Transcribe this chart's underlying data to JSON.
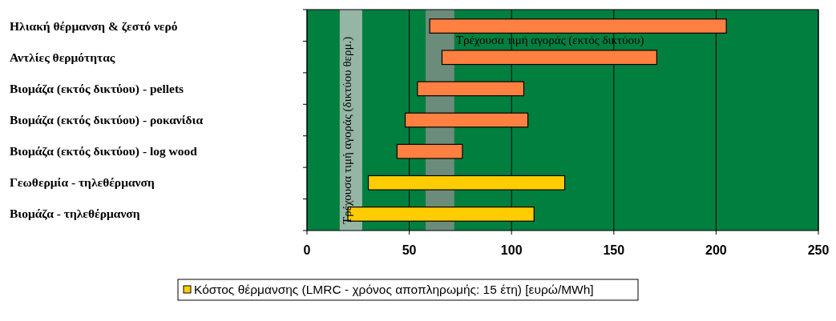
{
  "chart_data": {
    "type": "bar",
    "orientation": "horizontal",
    "categories": [
      "Ηλιακή θέρμανση & ζεστό νερό",
      "Αντλίες θερμότητας",
      "Βιομάζα (εκτός δικτύου) - pellets",
      "Βιομάζα (εκτός δικτύου) - ροκανίδια",
      "Βιομάζα (εκτός δικτύου) - log wood",
      "Γεωθερμία - τηλεθέρμανση",
      "Βιομάζα - τηλεθέρμανση"
    ],
    "series": [
      {
        "base": [
          60,
          66,
          54,
          48,
          44,
          30,
          20
        ],
        "name": "Κόστος θέρμανσης (LMRC - χρόνος αποπληρωμής: 15 έτη) [ευρώ/MWh]",
        "color": "#ffcc00",
        "colors": [
          "#ff8040",
          "#ff8040",
          "#ff8040",
          "#ff8040",
          "#ff8040",
          "#ffcc00",
          "#ffcc00"
        ],
        "values": [
          145,
          105,
          52,
          60,
          32,
          96,
          91
        ]
      }
    ],
    "xlim": [
      0,
      250
    ],
    "xticks": [
      0,
      50,
      100,
      150,
      200,
      250
    ],
    "grid": "x",
    "legend": "bottom",
    "bands": [
      {
        "axis": "x",
        "from": 58,
        "to": 72,
        "label": "Τρέχουσα τιμή αγοράς (εκτός δικτύου)",
        "color": "#909090"
      },
      {
        "axis": "x",
        "from": 16,
        "to": 27,
        "label": "Τρέχουσα τιμή αγοράς (δικτύου θερμ.)",
        "color": "#c8c8c8"
      }
    ]
  }
}
